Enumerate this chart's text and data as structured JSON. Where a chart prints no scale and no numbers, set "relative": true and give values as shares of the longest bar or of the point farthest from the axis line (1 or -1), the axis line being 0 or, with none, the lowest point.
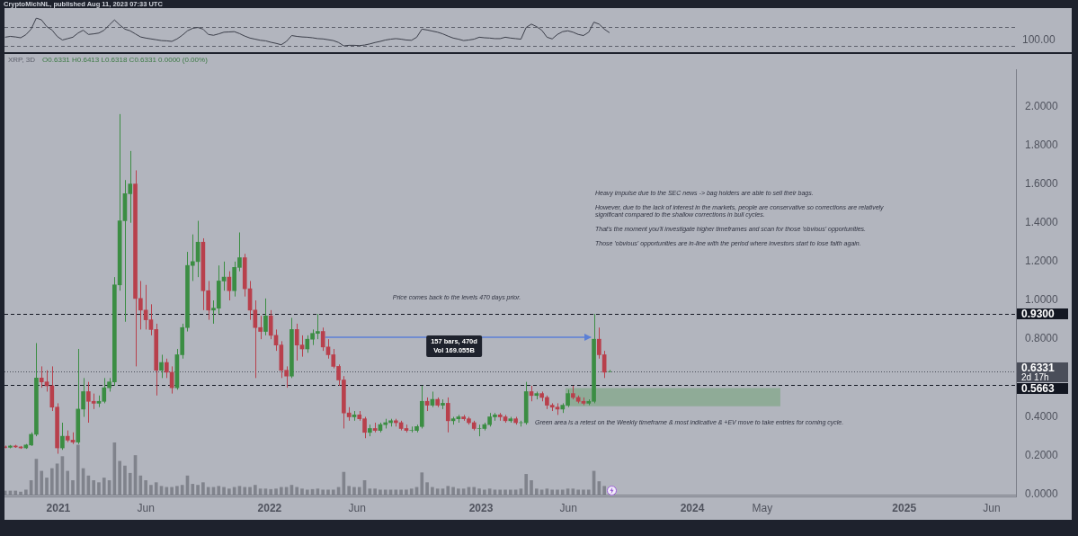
{
  "chart_data": [
    {
      "type": "line",
      "relative": true,
      "color": "#3c3f4a",
      "xlim": [
        "2020-09-30",
        "2025-07-13"
      ],
      "tick_labels": false,
      "x": [
        "2020-10-01",
        "2020-10-10",
        "2020-10-19",
        "2020-10-28",
        "2020-11-06",
        "2020-11-15",
        "2020-11-24",
        "2020-12-03",
        "2020-12-12",
        "2020-12-21",
        "2020-12-30",
        "2021-01-08",
        "2021-01-17",
        "2021-01-26",
        "2021-02-04",
        "2021-02-13",
        "2021-02-22",
        "2021-03-03",
        "2021-03-12",
        "2021-03-21",
        "2021-03-30",
        "2021-04-08",
        "2021-04-17",
        "2021-04-26",
        "2021-05-05",
        "2021-05-14",
        "2021-05-23",
        "2021-06-01",
        "2021-06-10",
        "2021-06-19",
        "2021-06-28",
        "2021-07-07",
        "2021-07-16",
        "2021-07-25",
        "2021-08-03",
        "2021-08-12",
        "2021-08-21",
        "2021-08-30",
        "2021-09-08",
        "2021-09-17",
        "2021-09-26",
        "2021-10-05",
        "2021-10-14",
        "2021-10-23",
        "2021-11-01",
        "2021-11-10",
        "2021-11-19",
        "2021-11-28",
        "2021-12-07",
        "2021-12-16",
        "2021-12-25",
        "2022-01-03",
        "2022-01-12",
        "2022-01-21",
        "2022-01-30",
        "2022-02-08",
        "2022-02-17",
        "2022-02-26",
        "2022-03-07",
        "2022-03-16",
        "2022-03-25",
        "2022-04-03",
        "2022-04-12",
        "2022-04-21",
        "2022-04-30",
        "2022-05-09",
        "2022-05-18",
        "2022-05-27",
        "2022-06-05",
        "2022-06-14",
        "2022-06-23",
        "2022-07-02",
        "2022-07-11",
        "2022-07-20",
        "2022-07-29",
        "2022-08-07",
        "2022-08-16",
        "2022-08-25",
        "2022-09-03",
        "2022-09-12",
        "2022-09-21",
        "2022-09-30",
        "2022-10-09",
        "2022-10-18",
        "2022-10-27",
        "2022-11-05",
        "2022-11-14",
        "2022-11-23",
        "2022-12-02",
        "2022-12-11",
        "2022-12-20",
        "2022-12-29",
        "2023-01-07",
        "2023-01-16",
        "2023-01-25",
        "2023-02-03",
        "2023-02-12",
        "2023-02-21",
        "2023-03-02",
        "2023-03-11",
        "2023-03-20",
        "2023-03-29",
        "2023-04-07",
        "2023-04-16",
        "2023-04-25",
        "2023-05-04",
        "2023-05-13",
        "2023-05-22",
        "2023-05-31",
        "2023-06-09",
        "2023-06-18",
        "2023-06-27",
        "2023-07-06",
        "2023-07-15",
        "2023-07-24",
        "2023-08-02",
        "2023-08-11"
      ],
      "values": [
        0.31,
        0.34,
        0.32,
        0.29,
        0.4,
        0.6,
        1,
        0.93,
        0.69,
        0.57,
        0.34,
        0.21,
        0.26,
        0.31,
        0.46,
        0.56,
        0.41,
        0.43,
        0.46,
        0.56,
        0.75,
        0.93,
        0.75,
        0.6,
        0.54,
        0.43,
        0.32,
        0.28,
        0.25,
        0.22,
        0.19,
        0.18,
        0.16,
        0.25,
        0.38,
        0.54,
        0.63,
        0.66,
        0.6,
        0.41,
        0.38,
        0.43,
        0.49,
        0.5,
        0.51,
        0.44,
        0.35,
        0.28,
        0.24,
        0.2,
        0.18,
        0.13,
        0.09,
        0.04,
        0.16,
        0.37,
        0.34,
        0.32,
        0.31,
        0.29,
        0.26,
        0.25,
        0.22,
        0.19,
        0.12,
        0,
        0.02,
        0.02,
        0.01,
        0.03,
        0.07,
        0.12,
        0.16,
        0.21,
        0.24,
        0.26,
        0.24,
        0.21,
        0.2,
        0.31,
        0.6,
        0.57,
        0.53,
        0.49,
        0.43,
        0.35,
        0.28,
        0.24,
        0.19,
        0.21,
        0.24,
        0.31,
        0.29,
        0.28,
        0.26,
        0.26,
        0.31,
        0.28,
        0.26,
        0.24,
        0.66,
        0.78,
        0.69,
        0.56,
        0.31,
        0.25,
        0.41,
        0.51,
        0.54,
        0.49,
        0.41,
        0.37,
        0.49,
        0.85,
        0.78,
        0.6,
        0.47
      ],
      "ref_lines": [
        {
          "axis": "y",
          "value": 0.68,
          "line_style": "dashed",
          "color": "#5d606b"
        },
        {
          "axis": "y",
          "value": 0,
          "line_style": "dashed",
          "color": "#5d606b"
        }
      ],
      "annotations": [
        "CryptoMichNL, published Aug 11, 2023 07:33 UTC",
        "100.00"
      ]
    },
    {
      "type": "candlestick",
      "title": "XRP, 3D",
      "xlim": [
        "2020-09-30",
        "2025-07-13"
      ],
      "xticks": [
        "2021",
        {
          "value": "2021-06",
          "label": "Jun"
        },
        "2022",
        {
          "value": "2022-06",
          "label": "Jun"
        },
        "2023",
        {
          "value": "2023-06",
          "label": "Jun"
        },
        "2024",
        {
          "value": "2024-05",
          "label": "May"
        },
        "2025",
        {
          "value": "2025-06",
          "label": "Jun"
        }
      ],
      "ylim": [
        -0.01,
        2.19
      ],
      "yticks": [
        {
          "value": 0,
          "label": "0.0000"
        },
        {
          "value": 0.2,
          "label": "0.2000"
        },
        {
          "value": 0.4,
          "label": "0.4000"
        },
        {
          "value": 0.8,
          "label": "0.8000"
        },
        {
          "value": 1,
          "label": "1.0000"
        },
        {
          "value": 1.2,
          "label": "1.2000"
        },
        {
          "value": 1.4,
          "label": "1.4000"
        },
        {
          "value": 1.6,
          "label": "1.6000"
        },
        {
          "value": 1.8,
          "label": "1.8000"
        },
        {
          "value": 2,
          "label": "2.0000"
        }
      ],
      "series": [
        {
          "type": "line",
          "x": [
            "2023-05-27",
            "2024-06-01"
          ],
          "values": [
            0.545,
            0.545
          ],
          "lower": [
            0.455,
            0.455
          ],
          "upper": [
            0.545,
            0.545
          ],
          "color": "#8fab97"
        },
        {
          "type": "line",
          "x": [
            "2022-04-07",
            "2023-07-09"
          ],
          "values": [
            0.81,
            0.81
          ],
          "color": "#5b7fd6"
        },
        {
          "type": "candlestick",
          "x": [
            "2020-10-01",
            "2020-10-10",
            "2020-10-19",
            "2020-10-28",
            "2020-11-06",
            "2020-11-15",
            "2020-11-24",
            "2020-12-03",
            "2020-12-12",
            "2020-12-21",
            "2020-12-30",
            "2021-01-08",
            "2021-01-17",
            "2021-01-26",
            "2021-02-04",
            "2021-02-13",
            "2021-02-22",
            "2021-03-03",
            "2021-03-12",
            "2021-03-21",
            "2021-03-30",
            "2021-04-08",
            "2021-04-17",
            "2021-04-26",
            "2021-05-05",
            "2021-05-14",
            "2021-05-23",
            "2021-06-01",
            "2021-06-10",
            "2021-06-19",
            "2021-06-28",
            "2021-07-07",
            "2021-07-16",
            "2021-07-25",
            "2021-08-03",
            "2021-08-12",
            "2021-08-21",
            "2021-08-30",
            "2021-09-08",
            "2021-09-17",
            "2021-09-26",
            "2021-10-05",
            "2021-10-14",
            "2021-10-23",
            "2021-11-01",
            "2021-11-10",
            "2021-11-19",
            "2021-11-28",
            "2021-12-07",
            "2021-12-16",
            "2021-12-25",
            "2022-01-03",
            "2022-01-12",
            "2022-01-21",
            "2022-01-30",
            "2022-02-08",
            "2022-02-17",
            "2022-02-26",
            "2022-03-07",
            "2022-03-16",
            "2022-03-25",
            "2022-04-03",
            "2022-04-12",
            "2022-04-21",
            "2022-04-30",
            "2022-05-09",
            "2022-05-18",
            "2022-05-27",
            "2022-06-05",
            "2022-06-14",
            "2022-06-23",
            "2022-07-02",
            "2022-07-11",
            "2022-07-20",
            "2022-07-29",
            "2022-08-07",
            "2022-08-16",
            "2022-08-25",
            "2022-09-03",
            "2022-09-12",
            "2022-09-21",
            "2022-09-30",
            "2022-10-09",
            "2022-10-18",
            "2022-10-27",
            "2022-11-05",
            "2022-11-14",
            "2022-11-23",
            "2022-12-02",
            "2022-12-11",
            "2022-12-20",
            "2022-12-29",
            "2023-01-07",
            "2023-01-16",
            "2023-01-25",
            "2023-02-03",
            "2023-02-12",
            "2023-02-21",
            "2023-03-02",
            "2023-03-11",
            "2023-03-20",
            "2023-03-29",
            "2023-04-07",
            "2023-04-16",
            "2023-04-25",
            "2023-05-04",
            "2023-05-13",
            "2023-05-22",
            "2023-05-31",
            "2023-06-09",
            "2023-06-18",
            "2023-06-27",
            "2023-07-06",
            "2023-07-15",
            "2023-07-24",
            "2023-08-02",
            "2023-08-11"
          ],
          "ohlc": [
            [
              0.245,
              0.252,
              0.238,
              0.243
            ],
            [
              0.243,
              0.255,
              0.238,
              0.25
            ],
            [
              0.25,
              0.256,
              0.24,
              0.245
            ],
            [
              0.245,
              0.25,
              0.235,
              0.24
            ],
            [
              0.24,
              0.26,
              0.235,
              0.255
            ],
            [
              0.255,
              0.32,
              0.25,
              0.31
            ],
            [
              0.31,
              0.78,
              0.3,
              0.6
            ],
            [
              0.6,
              0.66,
              0.55,
              0.58
            ],
            [
              0.58,
              0.64,
              0.53,
              0.56
            ],
            [
              0.56,
              0.66,
              0.43,
              0.45
            ],
            [
              0.45,
              0.47,
              0.21,
              0.24
            ],
            [
              0.24,
              0.37,
              0.23,
              0.3
            ],
            [
              0.3,
              0.33,
              0.27,
              0.28
            ],
            [
              0.28,
              0.32,
              0.26,
              0.27
            ],
            [
              0.27,
              0.75,
              0.26,
              0.44
            ],
            [
              0.44,
              0.6,
              0.4,
              0.53
            ],
            [
              0.53,
              0.58,
              0.37,
              0.48
            ],
            [
              0.48,
              0.52,
              0.44,
              0.47
            ],
            [
              0.47,
              0.51,
              0.45,
              0.48
            ],
            [
              0.48,
              0.6,
              0.47,
              0.55
            ],
            [
              0.55,
              0.6,
              0.53,
              0.58
            ],
            [
              0.58,
              1.12,
              0.56,
              1.08
            ],
            [
              1.08,
              1.96,
              1.05,
              1.41
            ],
            [
              1.41,
              1.62,
              0.89,
              1.55
            ],
            [
              1.55,
              1.77,
              1.4,
              1.6
            ],
            [
              1.6,
              1.67,
              0.66,
              1.01
            ],
            [
              1.01,
              1.1,
              0.85,
              0.95
            ],
            [
              0.95,
              1.08,
              0.85,
              0.9
            ],
            [
              0.9,
              0.98,
              0.82,
              0.85
            ],
            [
              0.85,
              0.88,
              0.51,
              0.64
            ],
            [
              0.64,
              0.72,
              0.6,
              0.68
            ],
            [
              0.68,
              0.7,
              0.6,
              0.63
            ],
            [
              0.63,
              0.66,
              0.52,
              0.55
            ],
            [
              0.55,
              0.75,
              0.54,
              0.72
            ],
            [
              0.72,
              0.88,
              0.7,
              0.86
            ],
            [
              0.86,
              1.25,
              0.84,
              1.18
            ],
            [
              1.18,
              1.34,
              1.1,
              1.2
            ],
            [
              1.2,
              1.41,
              1.12,
              1.3
            ],
            [
              1.3,
              1.32,
              0.95,
              1.05
            ],
            [
              1.05,
              1.1,
              0.9,
              0.95
            ],
            [
              0.95,
              1,
              0.88,
              0.96
            ],
            [
              0.96,
              1.18,
              0.93,
              1.1
            ],
            [
              1.1,
              1.2,
              1.05,
              1.12
            ],
            [
              1.12,
              1.15,
              1,
              1.05
            ],
            [
              1.05,
              1.2,
              1.02,
              1.17
            ],
            [
              1.17,
              1.35,
              1.15,
              1.22
            ],
            [
              1.22,
              1.24,
              1.02,
              1.06
            ],
            [
              1.06,
              1.1,
              0.9,
              0.95
            ],
            [
              0.95,
              1,
              0.6,
              0.86
            ],
            [
              0.86,
              0.92,
              0.8,
              0.84
            ],
            [
              0.84,
              1.01,
              0.82,
              0.92
            ],
            [
              0.92,
              0.95,
              0.8,
              0.82
            ],
            [
              0.82,
              0.85,
              0.74,
              0.77
            ],
            [
              0.77,
              0.79,
              0.6,
              0.64
            ],
            [
              0.64,
              0.66,
              0.55,
              0.61
            ],
            [
              0.61,
              0.91,
              0.6,
              0.85
            ],
            [
              0.85,
              0.88,
              0.69,
              0.77
            ],
            [
              0.77,
              0.82,
              0.71,
              0.75
            ],
            [
              0.75,
              0.82,
              0.73,
              0.8
            ],
            [
              0.8,
              0.85,
              0.77,
              0.83
            ],
            [
              0.83,
              0.93,
              0.8,
              0.84
            ],
            [
              0.84,
              0.86,
              0.74,
              0.76
            ],
            [
              0.76,
              0.8,
              0.7,
              0.72
            ],
            [
              0.72,
              0.75,
              0.65,
              0.66
            ],
            [
              0.66,
              0.67,
              0.56,
              0.59
            ],
            [
              0.59,
              0.61,
              0.34,
              0.42
            ],
            [
              0.42,
              0.45,
              0.38,
              0.4
            ],
            [
              0.4,
              0.43,
              0.38,
              0.41
            ],
            [
              0.41,
              0.43,
              0.38,
              0.39
            ],
            [
              0.39,
              0.4,
              0.29,
              0.32
            ],
            [
              0.32,
              0.36,
              0.3,
              0.34
            ],
            [
              0.34,
              0.37,
              0.32,
              0.33
            ],
            [
              0.33,
              0.37,
              0.32,
              0.36
            ],
            [
              0.36,
              0.39,
              0.34,
              0.37
            ],
            [
              0.37,
              0.39,
              0.35,
              0.38
            ],
            [
              0.38,
              0.39,
              0.35,
              0.37
            ],
            [
              0.37,
              0.38,
              0.33,
              0.34
            ],
            [
              0.34,
              0.36,
              0.32,
              0.33
            ],
            [
              0.33,
              0.35,
              0.32,
              0.33
            ],
            [
              0.33,
              0.36,
              0.32,
              0.35
            ],
            [
              0.35,
              0.56,
              0.34,
              0.48
            ],
            [
              0.48,
              0.5,
              0.43,
              0.46
            ],
            [
              0.46,
              0.53,
              0.45,
              0.49
            ],
            [
              0.49,
              0.5,
              0.45,
              0.46
            ],
            [
              0.46,
              0.49,
              0.44,
              0.47
            ],
            [
              0.47,
              0.5,
              0.32,
              0.38
            ],
            [
              0.38,
              0.4,
              0.36,
              0.39
            ],
            [
              0.39,
              0.41,
              0.37,
              0.4
            ],
            [
              0.4,
              0.41,
              0.38,
              0.39
            ],
            [
              0.39,
              0.4,
              0.36,
              0.37
            ],
            [
              0.37,
              0.38,
              0.33,
              0.34
            ],
            [
              0.34,
              0.36,
              0.3,
              0.34
            ],
            [
              0.34,
              0.37,
              0.33,
              0.36
            ],
            [
              0.36,
              0.42,
              0.35,
              0.4
            ],
            [
              0.4,
              0.42,
              0.38,
              0.41
            ],
            [
              0.41,
              0.42,
              0.38,
              0.4
            ],
            [
              0.4,
              0.41,
              0.37,
              0.38
            ],
            [
              0.38,
              0.4,
              0.37,
              0.39
            ],
            [
              0.39,
              0.4,
              0.36,
              0.37
            ],
            [
              0.37,
              0.38,
              0.35,
              0.37
            ],
            [
              0.37,
              0.58,
              0.36,
              0.53
            ],
            [
              0.53,
              0.56,
              0.48,
              0.51
            ],
            [
              0.51,
              0.53,
              0.49,
              0.52
            ],
            [
              0.52,
              0.53,
              0.48,
              0.5
            ],
            [
              0.5,
              0.51,
              0.44,
              0.46
            ],
            [
              0.46,
              0.47,
              0.43,
              0.45
            ],
            [
              0.45,
              0.47,
              0.41,
              0.44
            ],
            [
              0.44,
              0.47,
              0.42,
              0.46
            ],
            [
              0.46,
              0.54,
              0.45,
              0.52
            ],
            [
              0.52,
              0.56,
              0.49,
              0.5
            ],
            [
              0.5,
              0.51,
              0.47,
              0.48
            ],
            [
              0.48,
              0.5,
              0.46,
              0.47
            ],
            [
              0.47,
              0.49,
              0.46,
              0.48
            ],
            [
              0.48,
              0.93,
              0.47,
              0.8
            ],
            [
              0.8,
              0.86,
              0.7,
              0.72
            ],
            [
              0.72,
              0.74,
              0.6,
              0.63
            ],
            [
              0.6331,
              0.6413,
              0.6318,
              0.6331
            ]
          ],
          "colors": [
            "#b8404c",
            "#3b8d43",
            "#b8404c",
            "#b8404c",
            "#3b8d43",
            "#3b8d43",
            "#3b8d43",
            "#b8404c",
            "#b8404c",
            "#b8404c",
            "#b8404c",
            "#3b8d43",
            "#b8404c",
            "#b8404c",
            "#3b8d43",
            "#3b8d43",
            "#b8404c",
            "#b8404c",
            "#3b8d43",
            "#3b8d43",
            "#3b8d43",
            "#3b8d43",
            "#3b8d43",
            "#3b8d43",
            "#3b8d43",
            "#b8404c",
            "#b8404c",
            "#b8404c",
            "#b8404c",
            "#b8404c",
            "#3b8d43",
            "#b8404c",
            "#b8404c",
            "#3b8d43",
            "#3b8d43",
            "#3b8d43",
            "#3b8d43",
            "#3b8d43",
            "#b8404c",
            "#b8404c",
            "#3b8d43",
            "#3b8d43",
            "#3b8d43",
            "#b8404c",
            "#3b8d43",
            "#3b8d43",
            "#b8404c",
            "#b8404c",
            "#b8404c",
            "#b8404c",
            "#3b8d43",
            "#b8404c",
            "#b8404c",
            "#b8404c",
            "#b8404c",
            "#3b8d43",
            "#b8404c",
            "#b8404c",
            "#3b8d43",
            "#3b8d43",
            "#3b8d43",
            "#b8404c",
            "#b8404c",
            "#b8404c",
            "#b8404c",
            "#b8404c",
            "#b8404c",
            "#3b8d43",
            "#b8404c",
            "#b8404c",
            "#3b8d43",
            "#b8404c",
            "#3b8d43",
            "#3b8d43",
            "#3b8d43",
            "#b8404c",
            "#b8404c",
            "#b8404c",
            "#3b8d43",
            "#3b8d43",
            "#3b8d43",
            "#b8404c",
            "#3b8d43",
            "#b8404c",
            "#3b8d43",
            "#b8404c",
            "#3b8d43",
            "#3b8d43",
            "#b8404c",
            "#b8404c",
            "#b8404c",
            "#3b8d43",
            "#3b8d43",
            "#3b8d43",
            "#3b8d43",
            "#b8404c",
            "#b8404c",
            "#3b8d43",
            "#b8404c",
            "#3b8d43",
            "#3b8d43",
            "#b8404c",
            "#3b8d43",
            "#b8404c",
            "#b8404c",
            "#b8404c",
            "#b8404c",
            "#3b8d43",
            "#3b8d43",
            "#b8404c",
            "#b8404c",
            "#b8404c",
            "#3b8d43",
            "#3b8d43",
            "#b8404c",
            "#b8404c",
            "#3b8d43"
          ]
        }
      ],
      "ref_lines": [
        {
          "axis": "y",
          "value": 0.93,
          "label": "0.9300",
          "line_style": "dashed",
          "color": "#131722"
        },
        {
          "axis": "y",
          "value": 0.6331,
          "label": "0.6331\n2d 17h",
          "line_style": "dotted",
          "color": "#4a4e5a"
        },
        {
          "axis": "y",
          "value": 0.5663,
          "label": "0.5663",
          "line_style": "dashed",
          "color": "#131722"
        }
      ],
      "annotations": [
        "O0.6331 H0.6413 L0.6318 C0.6331 0.0000 (0.00%)",
        "Heavy impulse due to the SEC news -> bag holders are able to sell their bags.",
        "However, due to the lack of interest in the markets, people are conservative so corrections are relatively significant compared to the shallow corrections in bull cycles.",
        "That's the moment you'll investigate higher timeframes and scan for those 'obvious' opportunities.",
        "Those 'obvious' opportunities are in-line with the period where investors start to lose faith again.",
        "Price comes back to the levels 470 days prior.",
        "157 bars, 470d\nVol 169.055B",
        "Green area is a retest on the Weekly timeframe & most indicative & +EV move to take entries for coming cycle."
      ]
    },
    {
      "type": "bar",
      "relative": true,
      "color": "#80838c",
      "xlim": [
        "2020-09-30",
        "2025-07-13"
      ],
      "tick_labels": false,
      "x": [
        "2020-10-01",
        "2020-10-10",
        "2020-10-19",
        "2020-10-28",
        "2020-11-06",
        "2020-11-15",
        "2020-11-24",
        "2020-12-03",
        "2020-12-12",
        "2020-12-21",
        "2020-12-30",
        "2021-01-08",
        "2021-01-17",
        "2021-01-26",
        "2021-02-04",
        "2021-02-13",
        "2021-02-22",
        "2021-03-03",
        "2021-03-12",
        "2021-03-21",
        "2021-03-30",
        "2021-04-08",
        "2021-04-17",
        "2021-04-26",
        "2021-05-05",
        "2021-05-14",
        "2021-05-23",
        "2021-06-01",
        "2021-06-10",
        "2021-06-19",
        "2021-06-28",
        "2021-07-07",
        "2021-07-16",
        "2021-07-25",
        "2021-08-03",
        "2021-08-12",
        "2021-08-21",
        "2021-08-30",
        "2021-09-08",
        "2021-09-17",
        "2021-09-26",
        "2021-10-05",
        "2021-10-14",
        "2021-10-23",
        "2021-11-01",
        "2021-11-10",
        "2021-11-19",
        "2021-11-28",
        "2021-12-07",
        "2021-12-16",
        "2021-12-25",
        "2022-01-03",
        "2022-01-12",
        "2022-01-21",
        "2022-01-30",
        "2022-02-08",
        "2022-02-17",
        "2022-02-26",
        "2022-03-07",
        "2022-03-16",
        "2022-03-25",
        "2022-04-03",
        "2022-04-12",
        "2022-04-21",
        "2022-04-30",
        "2022-05-09",
        "2022-05-18",
        "2022-05-27",
        "2022-06-05",
        "2022-06-14",
        "2022-06-23",
        "2022-07-02",
        "2022-07-11",
        "2022-07-20",
        "2022-07-29",
        "2022-08-07",
        "2022-08-16",
        "2022-08-25",
        "2022-09-03",
        "2022-09-12",
        "2022-09-21",
        "2022-09-30",
        "2022-10-09",
        "2022-10-18",
        "2022-10-27",
        "2022-11-05",
        "2022-11-14",
        "2022-11-23",
        "2022-12-02",
        "2022-12-11",
        "2022-12-20",
        "2022-12-29",
        "2023-01-07",
        "2023-01-16",
        "2023-01-25",
        "2023-02-03",
        "2023-02-12",
        "2023-02-21",
        "2023-03-02",
        "2023-03-11",
        "2023-03-20",
        "2023-03-29",
        "2023-04-07",
        "2023-04-16",
        "2023-04-25",
        "2023-05-04",
        "2023-05-13",
        "2023-05-22",
        "2023-05-31",
        "2023-06-09",
        "2023-06-18",
        "2023-06-27",
        "2023-07-06",
        "2023-07-15",
        "2023-07-24",
        "2023-08-02"
      ],
      "values": [
        0.07,
        0.07,
        0.07,
        0.05,
        0.09,
        0.27,
        0.68,
        0.45,
        0.32,
        0.5,
        0.59,
        0.73,
        0.45,
        0.27,
        0.95,
        0.5,
        0.36,
        0.27,
        0.23,
        0.32,
        0.27,
        1,
        0.64,
        0.55,
        0.41,
        0.75,
        0.36,
        0.27,
        0.18,
        0.23,
        0.16,
        0.14,
        0.14,
        0.16,
        0.18,
        0.36,
        0.2,
        0.18,
        0.23,
        0.14,
        0.14,
        0.16,
        0.14,
        0.11,
        0.14,
        0.16,
        0.14,
        0.14,
        0.18,
        0.11,
        0.11,
        0.1,
        0.11,
        0.14,
        0.14,
        0.18,
        0.14,
        0.11,
        0.09,
        0.1,
        0.11,
        0.09,
        0.09,
        0.09,
        0.14,
        0.43,
        0.16,
        0.14,
        0.14,
        0.27,
        0.11,
        0.11,
        0.09,
        0.09,
        0.09,
        0.09,
        0.09,
        0.09,
        0.11,
        0.14,
        0.42,
        0.23,
        0.14,
        0.11,
        0.11,
        0.16,
        0.14,
        0.11,
        0.11,
        0.14,
        0.14,
        0.11,
        0.09,
        0.11,
        0.09,
        0.09,
        0.09,
        0.09,
        0.09,
        0.11,
        0.39,
        0.27,
        0.11,
        0.09,
        0.11,
        0.09,
        0.09,
        0.09,
        0.11,
        0.11,
        0.09,
        0.09,
        0.09,
        0.45,
        0.25,
        0.16
      ]
    }
  ]
}
